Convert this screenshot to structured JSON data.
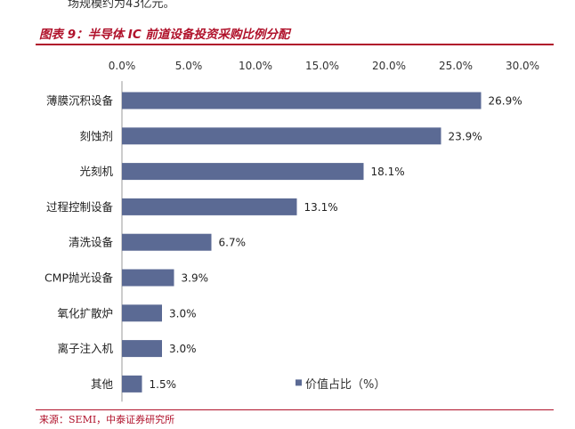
{
  "page": {
    "top_snippet": "场规模约为43亿元。",
    "figure_title": "图表 9：半导体 IC 前道设备投资采购比例分配",
    "source": "来源：SEMI，中泰证券研究所"
  },
  "chart_data": {
    "type": "bar",
    "orientation": "horizontal",
    "categories": [
      "薄膜沉积设备",
      "刻蚀剂",
      "光刻机",
      "过程控制设备",
      "清洗设备",
      "CMP抛光设备",
      "氧化扩散炉",
      "离子注入机",
      "其他"
    ],
    "series": [
      {
        "name": "价值占比（%）",
        "values": [
          26.9,
          23.9,
          18.1,
          13.1,
          6.7,
          3.9,
          3.0,
          3.0,
          1.5
        ],
        "data_labels": [
          "26.9%",
          "23.9%",
          "18.1%",
          "13.1%",
          "6.7%",
          "3.9%",
          "3.0%",
          "3.0%",
          "1.5%"
        ],
        "color": "#5b6a94"
      }
    ],
    "x_ticks": [
      "0.0%",
      "5.0%",
      "10.0%",
      "15.0%",
      "20.0%",
      "25.0%",
      "30.0%"
    ],
    "xlim": [
      0,
      30
    ],
    "axis_position": "top",
    "grid": false,
    "legend_position": "bottom-right"
  }
}
